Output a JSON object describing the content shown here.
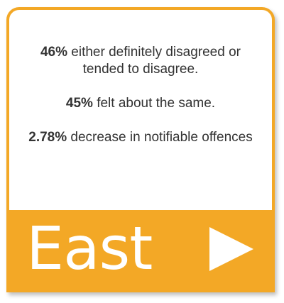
{
  "stats": [
    {
      "pct": "46%",
      "text": " either definitely disagreed or tended to disagree."
    },
    {
      "pct": "45%",
      "text": " felt about the same."
    },
    {
      "pct": "2.78%",
      "text": " decrease in notifiable offences"
    }
  ],
  "footer": {
    "region": "East",
    "arrow_icon": "play-right-icon"
  },
  "colors": {
    "accent": "#f3a826",
    "text": "#333333",
    "label": "#ffffff"
  }
}
